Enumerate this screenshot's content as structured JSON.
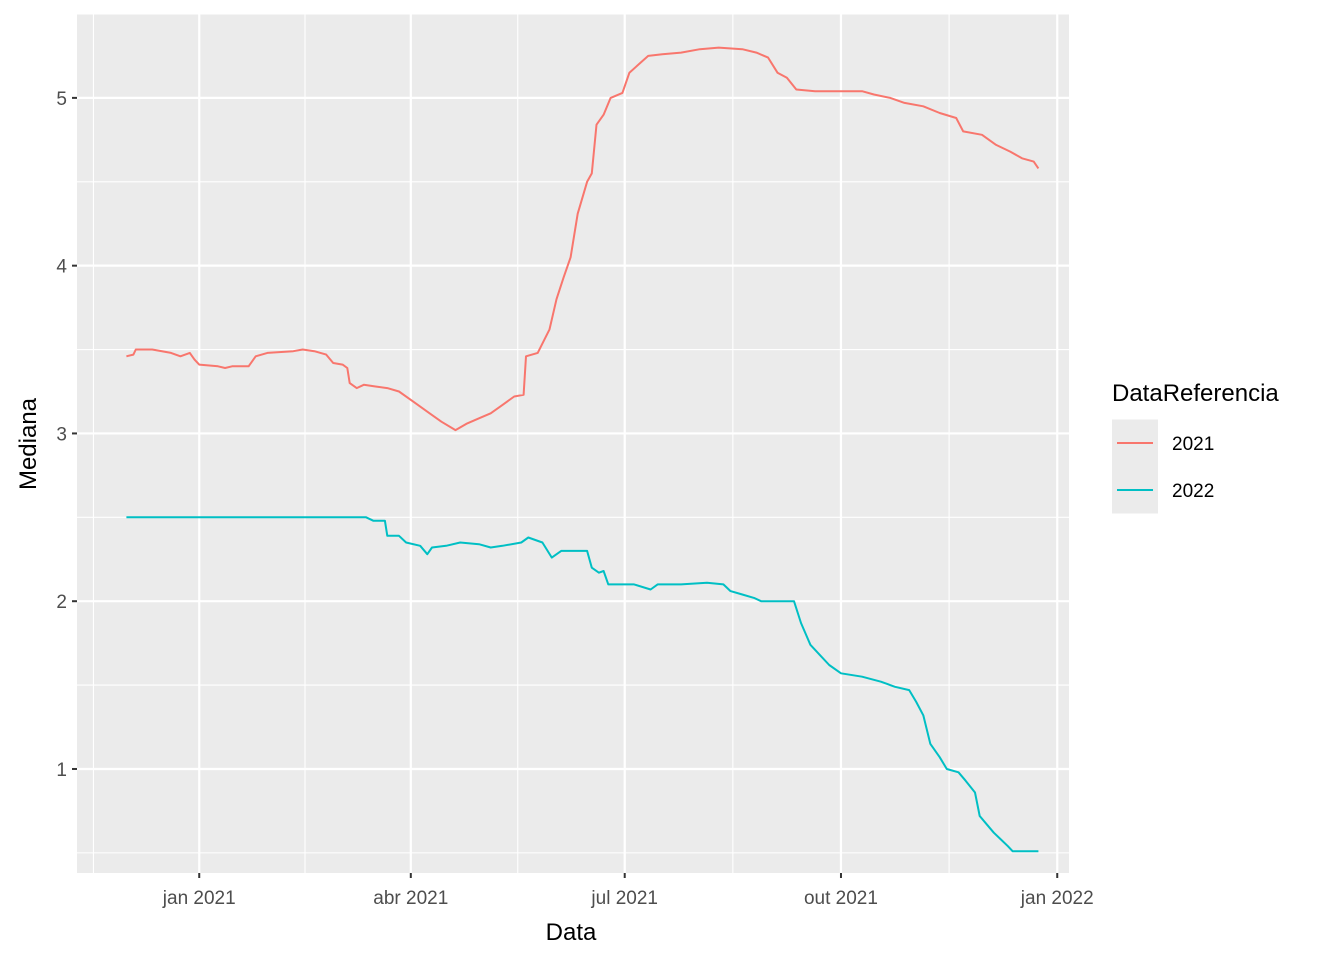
{
  "chart_data": {
    "type": "line",
    "xlabel": "Data",
    "ylabel": "Mediana",
    "x_ticks": [
      {
        "date": "2021-01-01",
        "label": "jan 2021"
      },
      {
        "date": "2021-04-01",
        "label": "abr 2021"
      },
      {
        "date": "2021-07-01",
        "label": "jul 2021"
      },
      {
        "date": "2021-10-01",
        "label": "out 2021"
      },
      {
        "date": "2022-01-01",
        "label": "jan 2022"
      }
    ],
    "y_ticks": [
      1,
      2,
      3,
      4,
      5
    ],
    "xlim": [
      "2020-11-10",
      "2022-01-06"
    ],
    "ylim": [
      0.38,
      5.5
    ],
    "grid": true,
    "legend": {
      "title": "DataReferencia",
      "position": "right"
    },
    "colors": {
      "2021": "#F8766D",
      "2022": "#00BFC4",
      "panel": "#EBEBEB",
      "grid": "#FFFFFF"
    },
    "series": [
      {
        "name": "2021",
        "points": [
          [
            "2020-12-01",
            3.46
          ],
          [
            "2020-12-04",
            3.47
          ],
          [
            "2020-12-05",
            3.5
          ],
          [
            "2020-12-12",
            3.5
          ],
          [
            "2020-12-20",
            3.48
          ],
          [
            "2020-12-24",
            3.46
          ],
          [
            "2020-12-28",
            3.48
          ],
          [
            "2020-12-30",
            3.44
          ],
          [
            "2021-01-01",
            3.41
          ],
          [
            "2021-01-09",
            3.4
          ],
          [
            "2021-01-12",
            3.39
          ],
          [
            "2021-01-15",
            3.4
          ],
          [
            "2021-01-22",
            3.4
          ],
          [
            "2021-01-25",
            3.46
          ],
          [
            "2021-01-30",
            3.48
          ],
          [
            "2021-02-10",
            3.49
          ],
          [
            "2021-02-14",
            3.5
          ],
          [
            "2021-02-19",
            3.49
          ],
          [
            "2021-02-24",
            3.47
          ],
          [
            "2021-02-27",
            3.42
          ],
          [
            "2021-03-03",
            3.41
          ],
          [
            "2021-03-05",
            3.39
          ],
          [
            "2021-03-06",
            3.3
          ],
          [
            "2021-03-09",
            3.27
          ],
          [
            "2021-03-12",
            3.29
          ],
          [
            "2021-03-17",
            3.28
          ],
          [
            "2021-03-22",
            3.27
          ],
          [
            "2021-03-27",
            3.25
          ],
          [
            "2021-04-02",
            3.19
          ],
          [
            "2021-04-09",
            3.12
          ],
          [
            "2021-04-14",
            3.07
          ],
          [
            "2021-04-20",
            3.02
          ],
          [
            "2021-04-25",
            3.06
          ],
          [
            "2021-04-30",
            3.09
          ],
          [
            "2021-05-05",
            3.12
          ],
          [
            "2021-05-10",
            3.17
          ],
          [
            "2021-05-15",
            3.22
          ],
          [
            "2021-05-19",
            3.23
          ],
          [
            "2021-05-20",
            3.46
          ],
          [
            "2021-05-25",
            3.48
          ],
          [
            "2021-05-30",
            3.62
          ],
          [
            "2021-06-02",
            3.8
          ],
          [
            "2021-06-05",
            3.93
          ],
          [
            "2021-06-08",
            4.05
          ],
          [
            "2021-06-11",
            4.31
          ],
          [
            "2021-06-15",
            4.5
          ],
          [
            "2021-06-17",
            4.55
          ],
          [
            "2021-06-19",
            4.84
          ],
          [
            "2021-06-22",
            4.9
          ],
          [
            "2021-06-25",
            5.0
          ],
          [
            "2021-06-30",
            5.03
          ],
          [
            "2021-07-03",
            5.15
          ],
          [
            "2021-07-07",
            5.2
          ],
          [
            "2021-07-11",
            5.25
          ],
          [
            "2021-07-17",
            5.26
          ],
          [
            "2021-07-25",
            5.27
          ],
          [
            "2021-08-02",
            5.29
          ],
          [
            "2021-08-10",
            5.3
          ],
          [
            "2021-08-20",
            5.29
          ],
          [
            "2021-08-26",
            5.27
          ],
          [
            "2021-08-31",
            5.24
          ],
          [
            "2021-09-04",
            5.15
          ],
          [
            "2021-09-08",
            5.12
          ],
          [
            "2021-09-12",
            5.05
          ],
          [
            "2021-09-20",
            5.04
          ],
          [
            "2021-09-30",
            5.04
          ],
          [
            "2021-10-10",
            5.04
          ],
          [
            "2021-10-15",
            5.02
          ],
          [
            "2021-10-22",
            5.0
          ],
          [
            "2021-10-28",
            4.97
          ],
          [
            "2021-11-05",
            4.95
          ],
          [
            "2021-11-12",
            4.91
          ],
          [
            "2021-11-19",
            4.88
          ],
          [
            "2021-11-22",
            4.8
          ],
          [
            "2021-11-30",
            4.78
          ],
          [
            "2021-12-06",
            4.72
          ],
          [
            "2021-12-12",
            4.68
          ],
          [
            "2021-12-17",
            4.64
          ],
          [
            "2021-12-22",
            4.62
          ],
          [
            "2021-12-24",
            4.58
          ]
        ]
      },
      {
        "name": "2022",
        "points": [
          [
            "2020-12-01",
            2.5
          ],
          [
            "2021-02-01",
            2.5
          ],
          [
            "2021-03-13",
            2.5
          ],
          [
            "2021-03-16",
            2.48
          ],
          [
            "2021-03-21",
            2.48
          ],
          [
            "2021-03-22",
            2.39
          ],
          [
            "2021-03-27",
            2.39
          ],
          [
            "2021-03-30",
            2.35
          ],
          [
            "2021-04-05",
            2.33
          ],
          [
            "2021-04-08",
            2.28
          ],
          [
            "2021-04-10",
            2.32
          ],
          [
            "2021-04-16",
            2.33
          ],
          [
            "2021-04-22",
            2.35
          ],
          [
            "2021-04-30",
            2.34
          ],
          [
            "2021-05-05",
            2.32
          ],
          [
            "2021-05-10",
            2.33
          ],
          [
            "2021-05-18",
            2.35
          ],
          [
            "2021-05-21",
            2.38
          ],
          [
            "2021-05-27",
            2.35
          ],
          [
            "2021-05-31",
            2.26
          ],
          [
            "2021-06-04",
            2.3
          ],
          [
            "2021-06-15",
            2.3
          ],
          [
            "2021-06-17",
            2.2
          ],
          [
            "2021-06-20",
            2.17
          ],
          [
            "2021-06-22",
            2.18
          ],
          [
            "2021-06-24",
            2.1
          ],
          [
            "2021-07-05",
            2.1
          ],
          [
            "2021-07-12",
            2.07
          ],
          [
            "2021-07-15",
            2.1
          ],
          [
            "2021-07-25",
            2.1
          ],
          [
            "2021-08-05",
            2.11
          ],
          [
            "2021-08-12",
            2.1
          ],
          [
            "2021-08-15",
            2.06
          ],
          [
            "2021-08-20",
            2.04
          ],
          [
            "2021-08-25",
            2.02
          ],
          [
            "2021-08-28",
            2.0
          ],
          [
            "2021-09-11",
            2.0
          ],
          [
            "2021-09-14",
            1.87
          ],
          [
            "2021-09-18",
            1.74
          ],
          [
            "2021-09-22",
            1.68
          ],
          [
            "2021-09-26",
            1.62
          ],
          [
            "2021-10-01",
            1.57
          ],
          [
            "2021-10-10",
            1.55
          ],
          [
            "2021-10-18",
            1.52
          ],
          [
            "2021-10-24",
            1.49
          ],
          [
            "2021-10-30",
            1.47
          ],
          [
            "2021-11-02",
            1.4
          ],
          [
            "2021-11-05",
            1.32
          ],
          [
            "2021-11-08",
            1.15
          ],
          [
            "2021-11-12",
            1.07
          ],
          [
            "2021-11-15",
            1.0
          ],
          [
            "2021-11-20",
            0.98
          ],
          [
            "2021-11-23",
            0.93
          ],
          [
            "2021-11-27",
            0.86
          ],
          [
            "2021-11-29",
            0.72
          ],
          [
            "2021-12-02",
            0.67
          ],
          [
            "2021-12-05",
            0.62
          ],
          [
            "2021-12-08",
            0.58
          ],
          [
            "2021-12-11",
            0.54
          ],
          [
            "2021-12-13",
            0.51
          ],
          [
            "2021-12-24",
            0.51
          ]
        ]
      }
    ]
  }
}
